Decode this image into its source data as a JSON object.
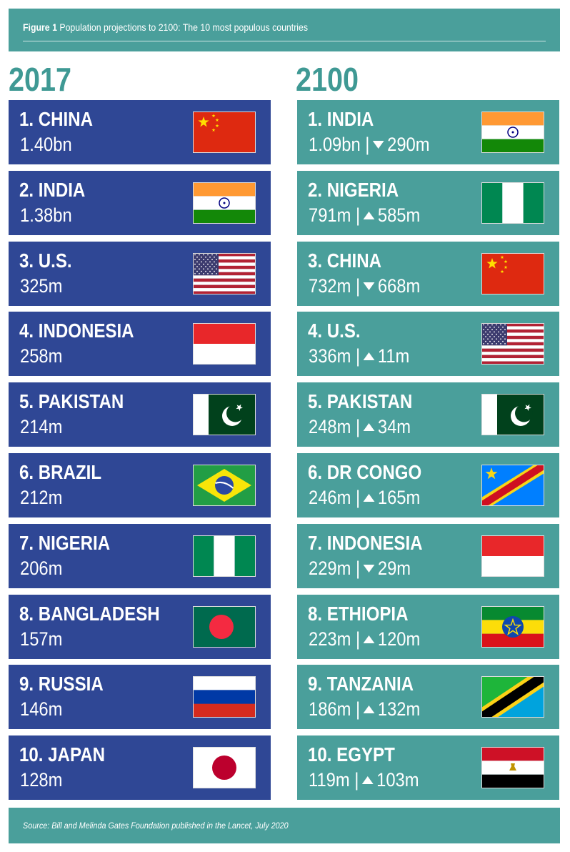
{
  "header": {
    "figure_label": "Figure 1",
    "title": "Population projections to 2100: The 10 most populous countries"
  },
  "columns": [
    {
      "year": "2017",
      "rows": [
        {
          "name": "1. CHINA",
          "value": "1.40bn"
        },
        {
          "name": "2. INDIA",
          "value": "1.38bn"
        },
        {
          "name": "3. U.S.",
          "value": "325m"
        },
        {
          "name": "4. INDONESIA",
          "value": "258m"
        },
        {
          "name": "5. PAKISTAN",
          "value": "214m"
        },
        {
          "name": "6. BRAZIL",
          "value": "212m"
        },
        {
          "name": "7. NIGERIA",
          "value": "206m"
        },
        {
          "name": "8. BANGLADESH",
          "value": "157m"
        },
        {
          "name": "9. RUSSIA",
          "value": "146m"
        },
        {
          "name": "10. JAPAN",
          "value": "128m"
        }
      ]
    },
    {
      "year": "2100",
      "separator": "|",
      "rows": [
        {
          "name": "1. INDIA",
          "value": "1.09bn",
          "direction": "down",
          "change": "290m"
        },
        {
          "name": "2. NIGERIA",
          "value": "791m",
          "direction": "up",
          "change": "585m"
        },
        {
          "name": "3. CHINA",
          "value": "732m",
          "direction": "down",
          "change": "668m"
        },
        {
          "name": "4. U.S.",
          "value": "336m",
          "direction": "up",
          "change": "11m"
        },
        {
          "name": "5. PAKISTAN",
          "value": "248m",
          "direction": "up",
          "change": "34m"
        },
        {
          "name": "6. DR CONGO",
          "value": "246m",
          "direction": "up",
          "change": "165m"
        },
        {
          "name": "7. INDONESIA",
          "value": "229m",
          "direction": "down",
          "change": "29m"
        },
        {
          "name": "8. ETHIOPIA",
          "value": "223m",
          "direction": "up",
          "change": "120m"
        },
        {
          "name": "9. TANZANIA",
          "value": "186m",
          "direction": "up",
          "change": "132m"
        },
        {
          "name": "10. EGYPT",
          "value": "119m",
          "direction": "up",
          "change": "103m"
        }
      ]
    }
  ],
  "source": "Source: Bill and Melinda Gates Foundation published in the Lancet, July 2020"
}
